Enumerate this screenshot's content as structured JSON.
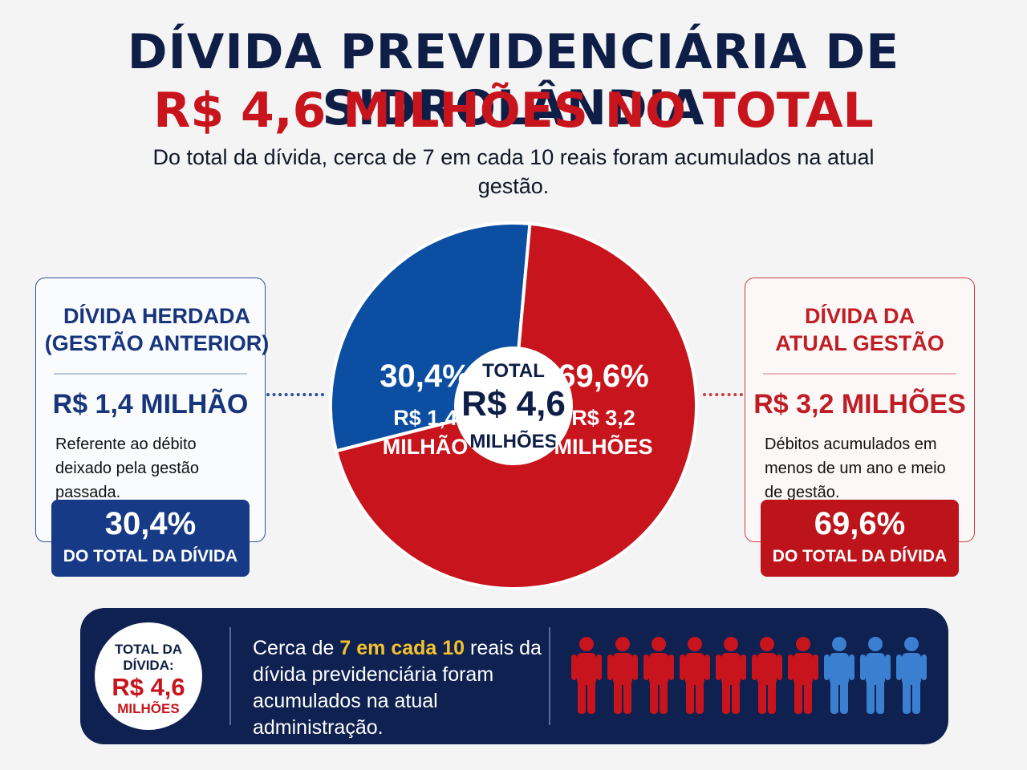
{
  "header": {
    "title": "DÍVIDA PREVIDENCIÁRIA DE SIDROLÂNDIA",
    "subtitle": "R$ 4,6 MILHÕES NO TOTAL",
    "lead": "Do total da dívida, cerca de 7 em cada 10 reais foram acumulados na atual gestão."
  },
  "colors": {
    "blue": "#0b4ea2",
    "red": "#c8141c",
    "navy": "#0e2150",
    "highlight": "#f5c12e"
  },
  "left_card": {
    "title_line1": "DÍVIDA HERDADA",
    "title_line2": "(GESTÃO ANTERIOR)",
    "amount": "R$ 1,4 MILHÃO",
    "description": "Referente ao débito deixado pela gestão passada.",
    "percent": "30,4%",
    "percent_label": "DO TOTAL DA DÍVIDA"
  },
  "right_card": {
    "title_line1": "DÍVIDA DA",
    "title_line2": "ATUAL GESTÃO",
    "amount": "R$ 3,2 MILHÕES",
    "description": "Débitos acumulados em menos de um ano e meio de gestão.",
    "percent": "69,6%",
    "percent_label": "DO TOTAL DA DÍVIDA"
  },
  "chart_data": {
    "type": "pie",
    "categories": [
      "Dívida herdada (gestão anterior)",
      "Dívida da atual gestão"
    ],
    "values": [
      30.4,
      69.6
    ],
    "amounts_millions": [
      1.4,
      3.2
    ],
    "slice_labels": [
      {
        "percent": "30,4%",
        "line1": "R$ 1,4",
        "line2": "MILHÃO"
      },
      {
        "percent": "69,6%",
        "line1": "R$ 3,2",
        "line2": "MILHÕES"
      }
    ],
    "center": {
      "line1": "TOTAL",
      "line2": "R$ 4,6",
      "line3": "MILHÕES"
    },
    "colors": [
      "#0b4ea2",
      "#c8141c"
    ]
  },
  "banner": {
    "badge_line1": "TOTAL DA",
    "badge_line2": "DÍVIDA:",
    "badge_amount": "R$ 4,6",
    "badge_unit": "MILHÕES",
    "text_before": "Cerca de ",
    "text_highlight": "7 em cada 10",
    "text_after": " reais da dívida previdenciária foram acumulados na atual administração.",
    "people_total": 10,
    "people_red": 7,
    "people_colors": {
      "red": "#c8141c",
      "blue": "#3b7fd0"
    }
  }
}
